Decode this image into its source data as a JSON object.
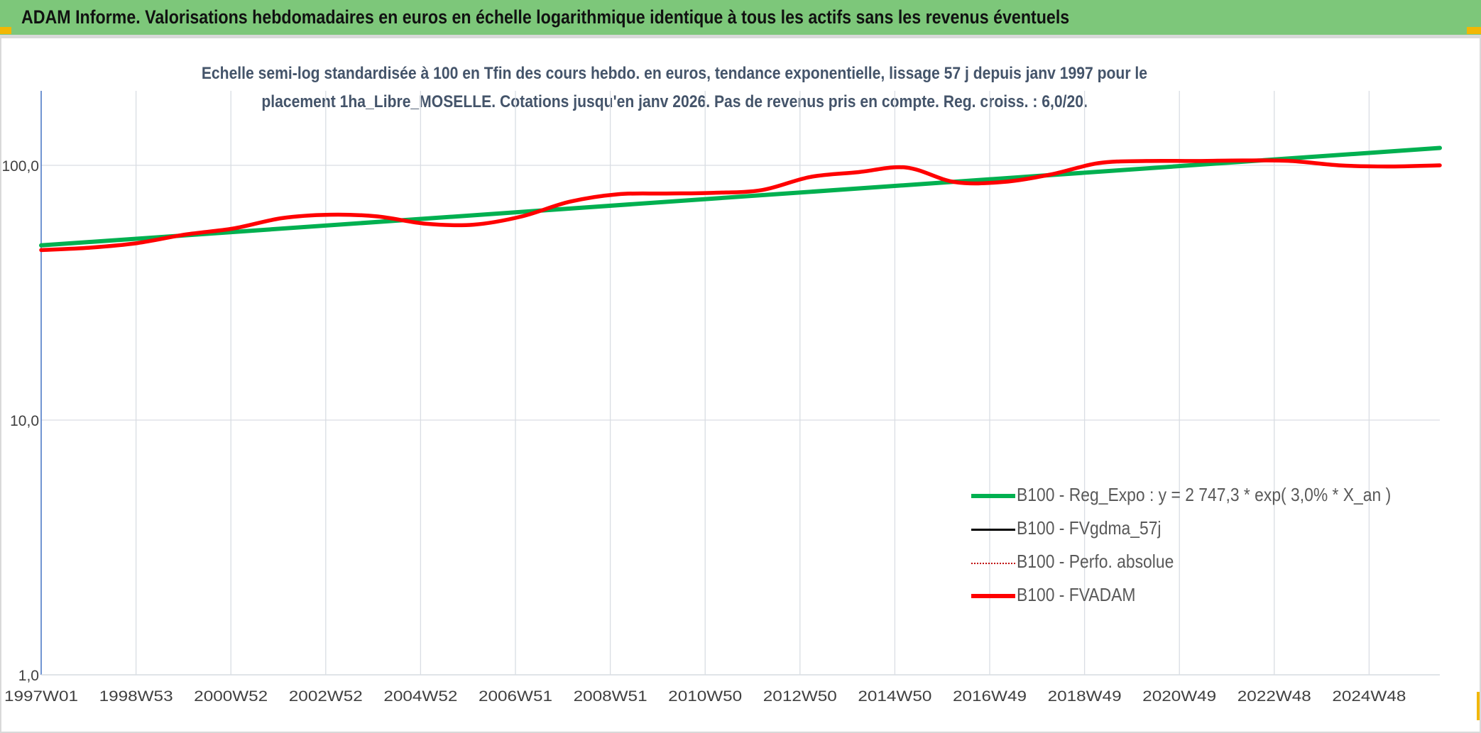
{
  "header": {
    "title": "ADAM Informe. Valorisations hebdomadaires en euros en échelle logarithmique identique à tous les actifs sans les revenus éventuels"
  },
  "colors": {
    "header_bg": "#7dc77a",
    "accent_corner": "#f2b705",
    "trend": "#00b050",
    "fvadam": "#ff0000",
    "fvgdma": "#000000",
    "perfo": "#c00000"
  },
  "chart_data": {
    "type": "line",
    "title_line1": "Echelle semi-log standardisée à 100 en Tfin des cours hebdo. en euros, tendance exponentielle, lissage 57 j depuis janv 1997 pour le",
    "title_line2": "placement 1ha_Libre_MOSELLE. Cotations jusqu'en janv 2026. Pas de revenus pris en compte. Reg. croiss. : 6,0/20.",
    "y_scale": "log",
    "ylim": [
      1,
      100
    ],
    "y_ticks": [
      1,
      10,
      100
    ],
    "y_tick_labels": [
      "1,0",
      "10,0",
      "100,0"
    ],
    "x_tick_labels": [
      "1997W01",
      "1998W53",
      "2000W52",
      "2002W52",
      "2004W52",
      "2006W51",
      "2008W51",
      "2010W50",
      "2012W50",
      "2014W50",
      "2016W49",
      "2018W49",
      "2020W49",
      "2022W48",
      "2024W48"
    ],
    "xlim": [
      1997.0,
      2026.1
    ],
    "grid": true,
    "legend_position": "bottom-right",
    "series": [
      {
        "name": "B100 - Reg_Expo : y = 2 747,3 * exp( 3,0% *  X_an )",
        "style": "trend",
        "x": [
          1997.0,
          2026.1
        ],
        "values": [
          48.5,
          117.0
        ]
      },
      {
        "name": "B100 - FVgdma_57j",
        "style": "solid-black",
        "x": [],
        "values": []
      },
      {
        "name": "B100 - Perfo. absolue",
        "style": "dotted-red",
        "x": [],
        "values": []
      },
      {
        "name": "B100 - FVADAM",
        "style": "fvadam",
        "x": [
          1997.0,
          1998.0,
          1999.0,
          2000.0,
          2001.0,
          2002.0,
          2003.0,
          2004.0,
          2005.0,
          2006.0,
          2007.0,
          2008.0,
          2009.0,
          2010.0,
          2011.0,
          2012.0,
          2013.0,
          2014.0,
          2015.0,
          2016.0,
          2017.0,
          2018.0,
          2019.0,
          2020.0,
          2021.0,
          2022.0,
          2023.0,
          2024.0,
          2025.0,
          2026.1
        ],
        "values": [
          46.5,
          47.5,
          49.5,
          53.5,
          56.5,
          62,
          64,
          63,
          59,
          58.5,
          63,
          72,
          77,
          77.5,
          78,
          80,
          90,
          94,
          98,
          86,
          86,
          92,
          102,
          104,
          104,
          104.5,
          104,
          100,
          99,
          100
        ]
      }
    ]
  }
}
